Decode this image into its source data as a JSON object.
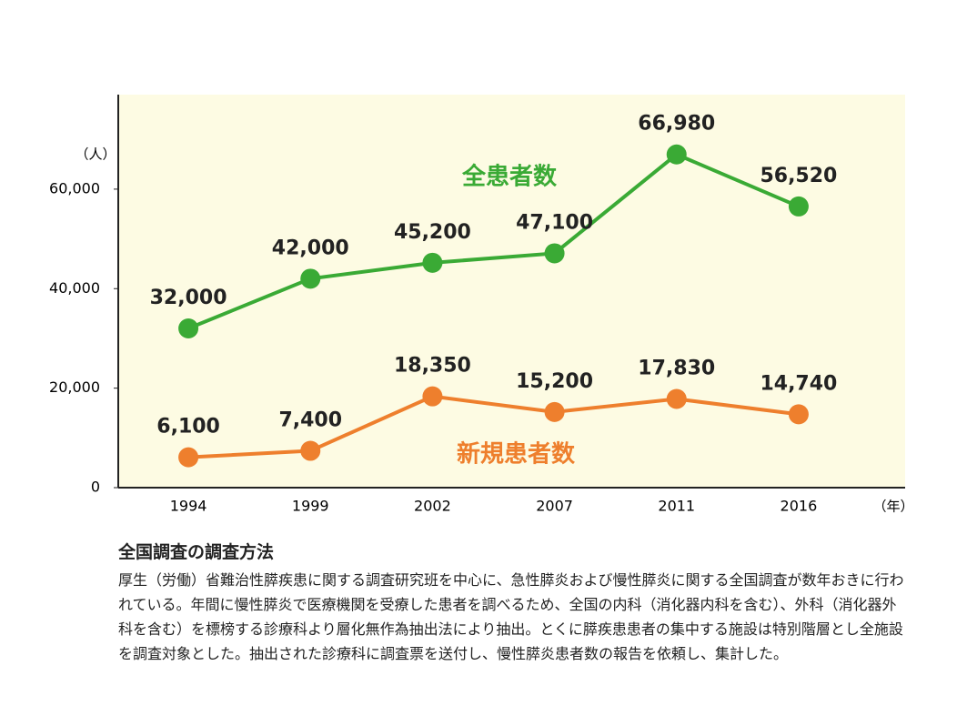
{
  "chart_data": {
    "type": "line",
    "categories": [
      "1994",
      "1999",
      "2002",
      "2007",
      "2011",
      "2016"
    ],
    "ylabel": "（人）",
    "xlabel": "（年）",
    "ylim": [
      0,
      79000
    ],
    "yticks": [
      0,
      {
        "value": 20000,
        "label": "20,000"
      },
      {
        "value": 40000,
        "label": "40,000"
      },
      {
        "value": 60000,
        "label": "60,000"
      }
    ],
    "grid": false,
    "series": [
      {
        "name": "全患者数",
        "color": "#3aaa35",
        "values": [
          32000,
          42000,
          45200,
          47100,
          66980,
          56520
        ],
        "value_labels": [
          "32,000",
          "42,000",
          "45,200",
          "47,100",
          "66,980",
          "56,520"
        ]
      },
      {
        "name": "新規患者数",
        "color": "#ee7f2d",
        "values": [
          6100,
          7400,
          18350,
          15200,
          17830,
          14740
        ],
        "value_labels": [
          "6,100",
          "7,400",
          "18,350",
          "15,200",
          "17,830",
          "14,740"
        ]
      }
    ]
  },
  "note": {
    "title": "全国調査の調査方法",
    "text": "厚生（労働）省難治性膵疾患に関する調査研究班を中心に、急性膵炎および慢性膵炎に関する全国調査が数年おきに行われている。年間に慢性膵炎で医療機関を受療した患者を調べるため、全国の内科（消化器内科を含む）、外科（消化器外科を含む）を標榜する診療科より層化無作為抽出法により抽出。とくに膵疾患患者の集中する施設は特別階層とし全施設を調査対象とした。抽出された診療科に調査票を送付し、慢性膵炎患者数の報告を依頼し、集計した。"
  }
}
